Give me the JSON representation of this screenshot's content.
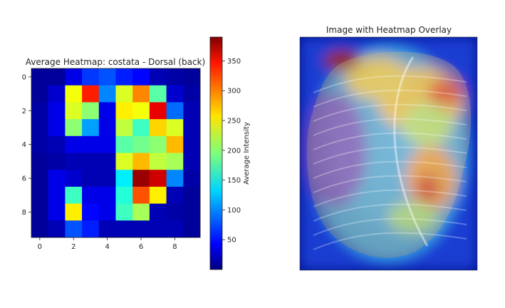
{
  "chart_data": [
    {
      "type": "heatmap",
      "title": "Average Heatmap: costata - Dorsal (back)",
      "colormap": "jet",
      "rows": 10,
      "cols": 10,
      "x_ticks": [
        "0",
        "2",
        "4",
        "6",
        "8"
      ],
      "y_ticks": [
        "0",
        "2",
        "4",
        "6",
        "8"
      ],
      "values": [
        [
          10,
          10,
          40,
          70,
          80,
          60,
          50,
          20,
          15,
          10
        ],
        [
          10,
          30,
          240,
          330,
          100,
          230,
          290,
          180,
          30,
          15
        ],
        [
          15,
          40,
          230,
          200,
          40,
          250,
          240,
          350,
          90,
          20
        ],
        [
          15,
          40,
          200,
          110,
          40,
          220,
          170,
          260,
          230,
          20
        ],
        [
          15,
          20,
          40,
          40,
          40,
          180,
          190,
          200,
          270,
          20
        ],
        [
          10,
          15,
          20,
          20,
          20,
          230,
          270,
          220,
          210,
          20
        ],
        [
          10,
          40,
          30,
          20,
          20,
          140,
          380,
          360,
          100,
          15
        ],
        [
          10,
          40,
          170,
          40,
          40,
          160,
          310,
          250,
          20,
          10
        ],
        [
          10,
          40,
          250,
          50,
          40,
          170,
          210,
          20,
          15,
          10
        ],
        [
          10,
          20,
          80,
          60,
          20,
          20,
          20,
          20,
          20,
          10
        ]
      ],
      "vmin": 0,
      "vmax": 390,
      "colorbar": {
        "label": "Average Intensity",
        "ticks": [
          "50",
          "100",
          "150",
          "200",
          "250",
          "300",
          "350"
        ]
      }
    },
    {
      "type": "heatmap",
      "title": "Image with Heatmap Overlay",
      "description_values": "shell photograph overlaid with jet-colored heatmap"
    }
  ]
}
